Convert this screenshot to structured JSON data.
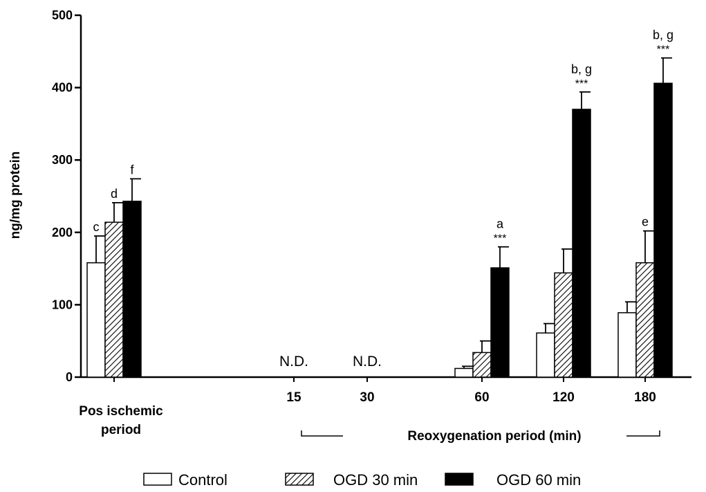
{
  "chart_data": {
    "type": "bar",
    "ylabel": "ng/mg protein",
    "ylim": [
      0,
      500
    ],
    "yticks": [
      "0",
      "100",
      "200",
      "300",
      "400",
      "500"
    ],
    "groups": [
      {
        "label": "Pos ischemic period",
        "label_lines": [
          "Pos ischemic",
          "period"
        ],
        "nd": false
      },
      {
        "label": "15",
        "nd": true,
        "nd_label": "N.D."
      },
      {
        "label": "30",
        "nd": true,
        "nd_label": "N.D."
      },
      {
        "label": "60",
        "nd": false
      },
      {
        "label": "120",
        "nd": false
      },
      {
        "label": "180",
        "nd": false
      }
    ],
    "series": [
      {
        "name": "Control",
        "pattern": "white",
        "values": [
          158,
          null,
          null,
          12,
          61,
          89
        ],
        "errors": [
          37,
          null,
          null,
          3,
          13,
          15
        ]
      },
      {
        "name": "OGD 30 min",
        "pattern": "hatched",
        "values": [
          214,
          null,
          null,
          34,
          144,
          158
        ],
        "errors": [
          27,
          null,
          null,
          16,
          33,
          44
        ]
      },
      {
        "name": "OGD 60 min",
        "pattern": "black",
        "values": [
          243,
          null,
          null,
          151,
          370,
          406
        ],
        "errors": [
          31,
          null,
          null,
          29,
          24,
          35
        ]
      }
    ],
    "annotations": [
      {
        "group": 0,
        "series": 0,
        "text": "c",
        "stars": ""
      },
      {
        "group": 0,
        "series": 1,
        "text": "d",
        "stars": ""
      },
      {
        "group": 0,
        "series": 2,
        "text": "f",
        "stars": ""
      },
      {
        "group": 3,
        "series": 2,
        "text": "a",
        "stars": "***"
      },
      {
        "group": 4,
        "series": 2,
        "text": "b, g",
        "stars": "***"
      },
      {
        "group": 5,
        "series": 1,
        "text": "e",
        "stars": ""
      },
      {
        "group": 5,
        "series": 2,
        "text": "b, g",
        "stars": "***"
      }
    ],
    "bracket_label": "Reoxygenation period (min)",
    "legend_position": "bottom"
  }
}
